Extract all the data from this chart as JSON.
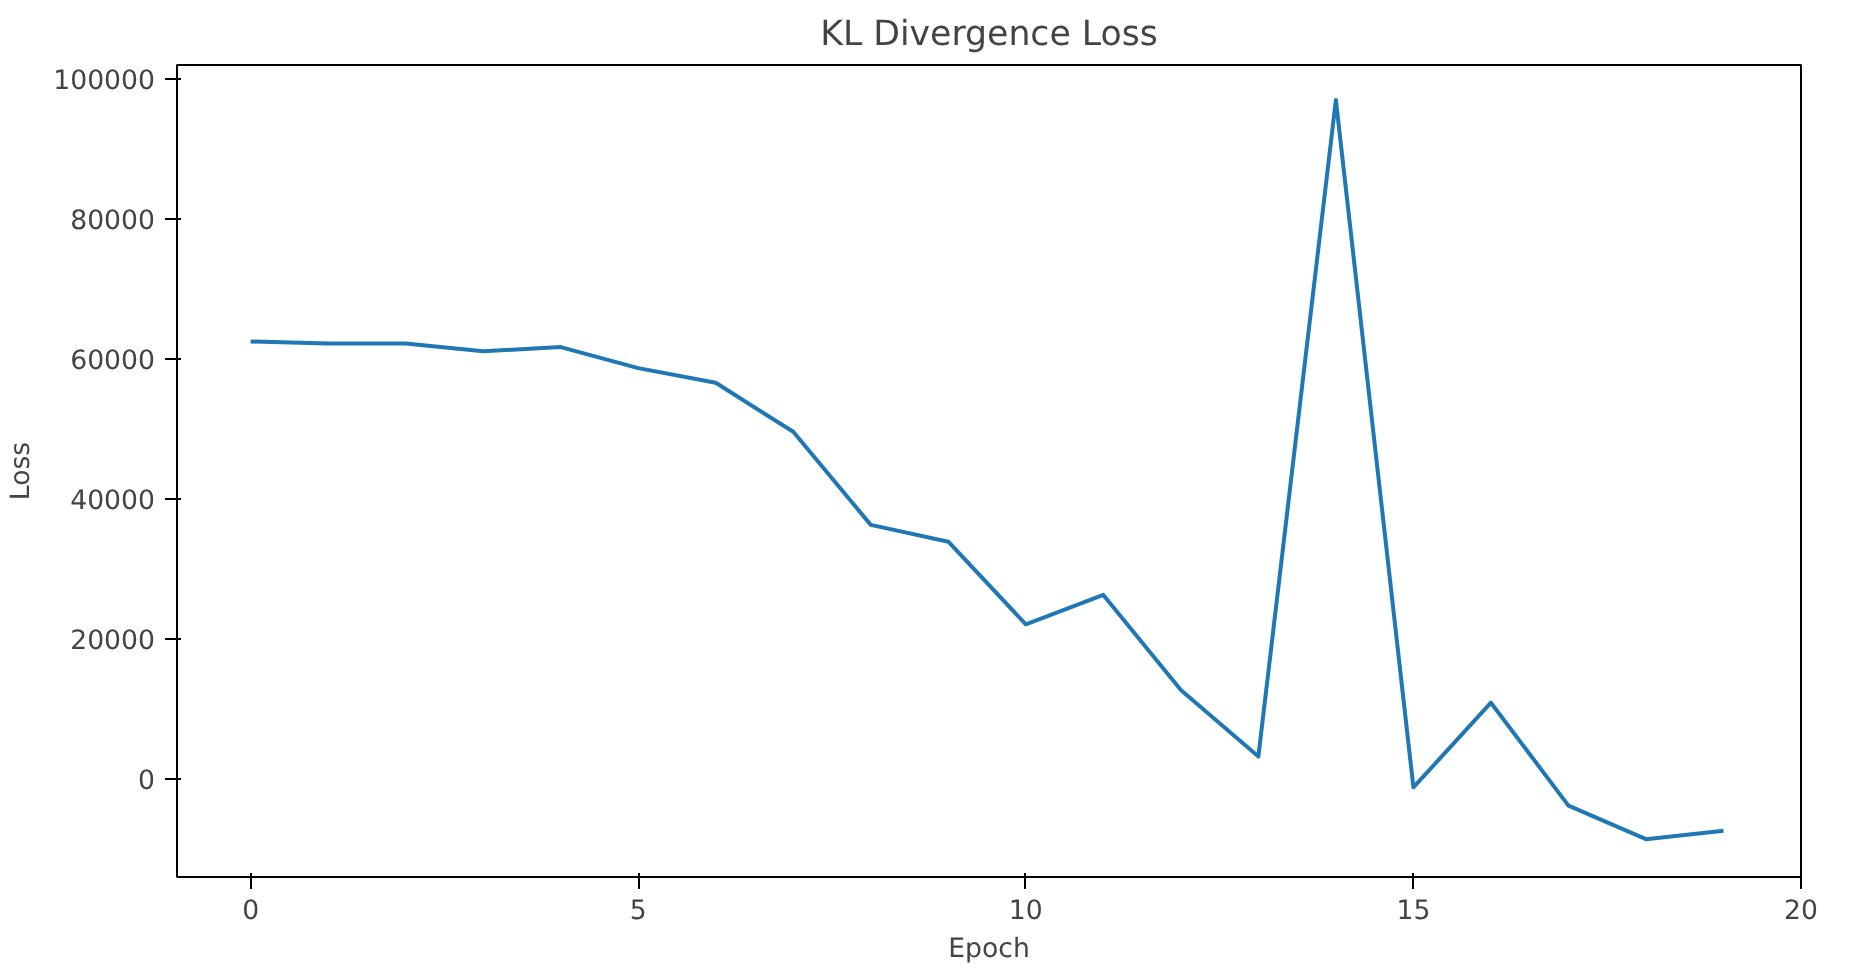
{
  "chart_data": {
    "type": "line",
    "title": "KL Divergence Loss",
    "xlabel": "Epoch",
    "ylabel": "Loss",
    "x": [
      0,
      1,
      2,
      3,
      4,
      5,
      6,
      7,
      8,
      9,
      10,
      11,
      12,
      13,
      14,
      15,
      16,
      17,
      18,
      19
    ],
    "series": [
      {
        "color": "#1f77b4",
        "values": [
          62500,
          62200,
          62200,
          61100,
          61700,
          58700,
          56600,
          49600,
          36300,
          33900,
          22100,
          26300,
          12700,
          3200,
          97000,
          -1200,
          10900,
          -3800,
          -8600,
          -7400
        ]
      }
    ],
    "xlim": [
      -0.95,
      20
    ],
    "ylim": [
      -14000,
      102000
    ],
    "xticks": [
      0,
      5,
      10,
      15,
      20
    ],
    "yticks": [
      0,
      20000,
      40000,
      60000,
      80000,
      100000
    ],
    "grid": false
  }
}
